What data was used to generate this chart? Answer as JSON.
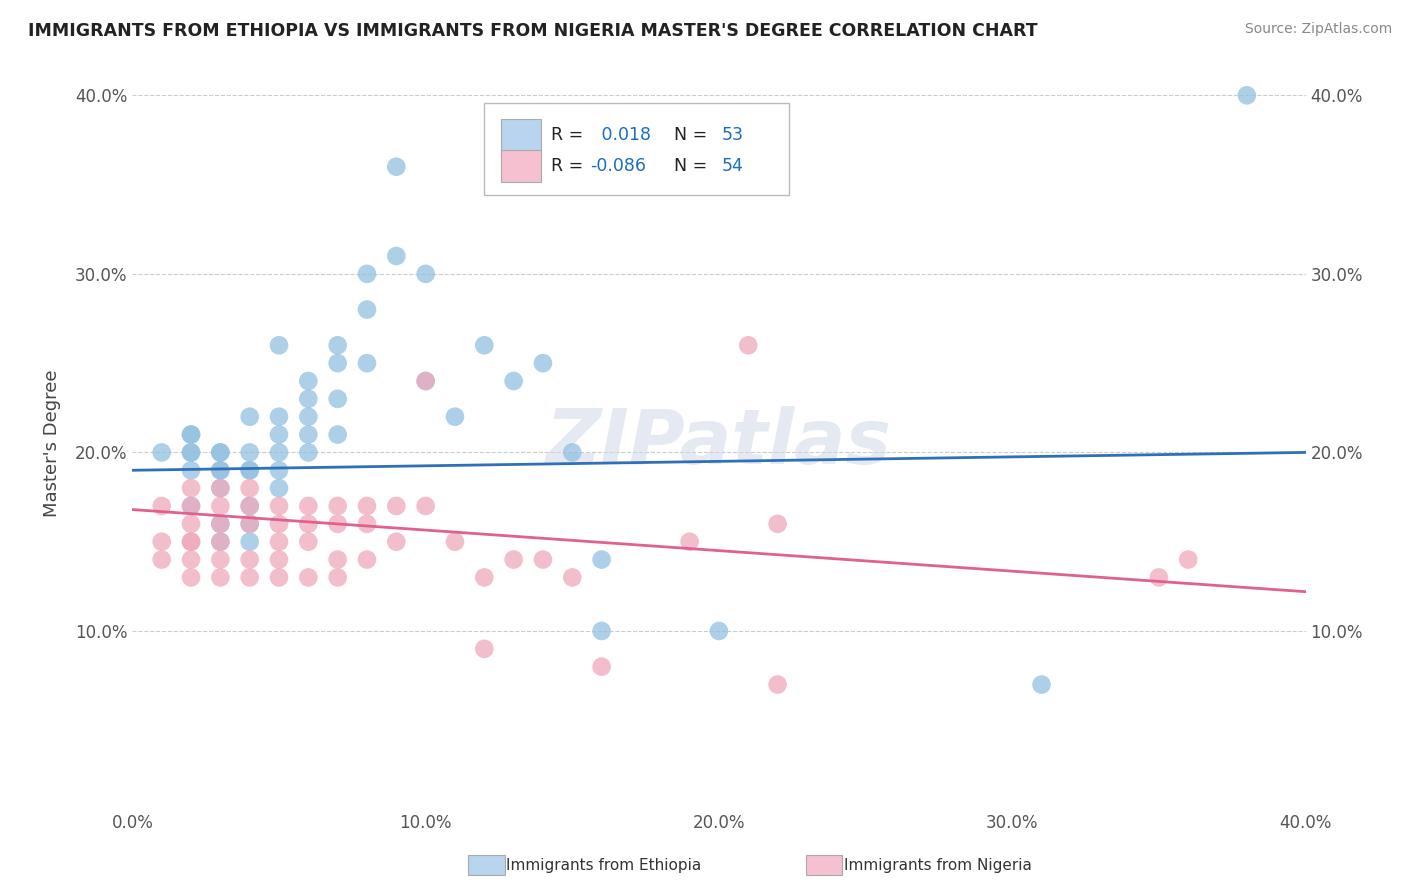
{
  "title": "IMMIGRANTS FROM ETHIOPIA VS IMMIGRANTS FROM NIGERIA MASTER'S DEGREE CORRELATION CHART",
  "source": "Source: ZipAtlas.com",
  "ylabel": "Master's Degree",
  "xlim": [
    0.0,
    0.4
  ],
  "ylim": [
    0.0,
    0.4
  ],
  "xtick_labels": [
    "0.0%",
    "10.0%",
    "20.0%",
    "30.0%",
    "40.0%"
  ],
  "xtick_values": [
    0.0,
    0.1,
    0.2,
    0.3,
    0.4
  ],
  "ytick_labels": [
    "10.0%",
    "20.0%",
    "30.0%",
    "40.0%"
  ],
  "ytick_values": [
    0.1,
    0.2,
    0.3,
    0.4
  ],
  "legend_R_ethiopia": "0.018",
  "legend_N_ethiopia": "53",
  "legend_R_nigeria": "-0.086",
  "legend_N_nigeria": "54",
  "blue_color": "#92c0e0",
  "pink_color": "#f0a8bb",
  "blue_line_color": "#3070b8",
  "pink_line_color": "#e06090",
  "blue_fill": "#b8d4ee",
  "pink_fill": "#f5c0d0",
  "grid_color": "#cccccc",
  "watermark": "ZIPatlas",
  "ethiopia_x": [
    0.01,
    0.02,
    0.02,
    0.02,
    0.02,
    0.02,
    0.02,
    0.03,
    0.03,
    0.03,
    0.03,
    0.03,
    0.03,
    0.03,
    0.04,
    0.04,
    0.04,
    0.04,
    0.04,
    0.04,
    0.04,
    0.05,
    0.05,
    0.05,
    0.05,
    0.05,
    0.05,
    0.06,
    0.06,
    0.06,
    0.06,
    0.06,
    0.07,
    0.07,
    0.07,
    0.07,
    0.08,
    0.08,
    0.08,
    0.09,
    0.09,
    0.1,
    0.1,
    0.11,
    0.12,
    0.13,
    0.14,
    0.15,
    0.16,
    0.16,
    0.2,
    0.31,
    0.38
  ],
  "ethiopia_y": [
    0.2,
    0.19,
    0.2,
    0.2,
    0.21,
    0.21,
    0.17,
    0.2,
    0.19,
    0.19,
    0.2,
    0.18,
    0.16,
    0.15,
    0.22,
    0.2,
    0.19,
    0.17,
    0.16,
    0.15,
    0.19,
    0.26,
    0.22,
    0.21,
    0.2,
    0.19,
    0.18,
    0.24,
    0.23,
    0.21,
    0.2,
    0.22,
    0.26,
    0.25,
    0.21,
    0.23,
    0.3,
    0.28,
    0.25,
    0.31,
    0.36,
    0.3,
    0.24,
    0.22,
    0.26,
    0.24,
    0.25,
    0.2,
    0.1,
    0.14,
    0.1,
    0.07,
    0.4
  ],
  "nigeria_x": [
    0.01,
    0.01,
    0.01,
    0.02,
    0.02,
    0.02,
    0.02,
    0.02,
    0.02,
    0.02,
    0.03,
    0.03,
    0.03,
    0.03,
    0.03,
    0.03,
    0.04,
    0.04,
    0.04,
    0.04,
    0.04,
    0.05,
    0.05,
    0.05,
    0.05,
    0.05,
    0.06,
    0.06,
    0.06,
    0.06,
    0.07,
    0.07,
    0.07,
    0.07,
    0.08,
    0.08,
    0.08,
    0.09,
    0.09,
    0.1,
    0.1,
    0.11,
    0.12,
    0.12,
    0.13,
    0.14,
    0.15,
    0.16,
    0.19,
    0.21,
    0.22,
    0.22,
    0.35,
    0.36
  ],
  "nigeria_y": [
    0.17,
    0.15,
    0.14,
    0.18,
    0.17,
    0.16,
    0.15,
    0.15,
    0.14,
    0.13,
    0.18,
    0.17,
    0.16,
    0.15,
    0.14,
    0.13,
    0.18,
    0.17,
    0.16,
    0.14,
    0.13,
    0.17,
    0.16,
    0.15,
    0.14,
    0.13,
    0.17,
    0.16,
    0.15,
    0.13,
    0.17,
    0.16,
    0.14,
    0.13,
    0.17,
    0.16,
    0.14,
    0.17,
    0.15,
    0.17,
    0.24,
    0.15,
    0.13,
    0.09,
    0.14,
    0.14,
    0.13,
    0.08,
    0.15,
    0.26,
    0.16,
    0.07,
    0.13,
    0.14
  ],
  "ethiopia_line_x": [
    0.0,
    0.4
  ],
  "ethiopia_line_y": [
    0.19,
    0.2
  ],
  "nigeria_line_x": [
    0.0,
    0.4
  ],
  "nigeria_line_y": [
    0.168,
    0.122
  ]
}
